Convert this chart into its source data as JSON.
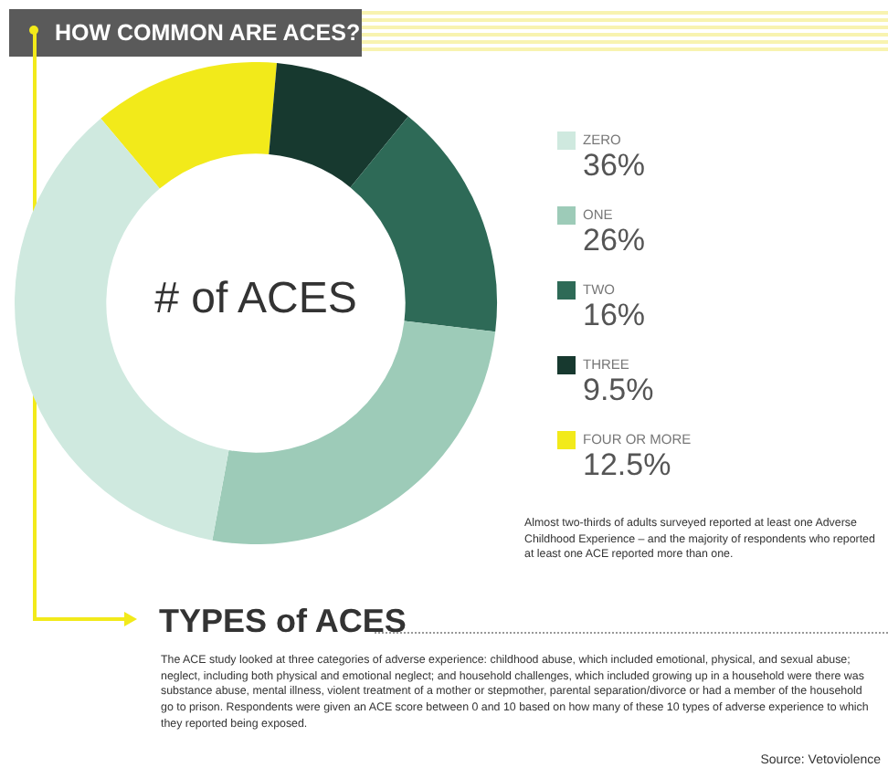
{
  "chart_data": {
    "type": "donut",
    "title": "HOW COMMON ARE ACES?",
    "categories": [
      "FOUR OR MORE",
      "THREE",
      "TWO",
      "ONE",
      "ZERO"
    ],
    "values": [
      12.5,
      9.5,
      16,
      26,
      36
    ],
    "value_labels": [
      "12.5%",
      "9.5%",
      "16%",
      "26%",
      "36%"
    ],
    "colors": [
      "#f2ea1a",
      "#17392f",
      "#2e6a57",
      "#9dcbb8",
      "#cfe9df"
    ],
    "legend": "right",
    "annotations": [
      "# of ACES",
      "Almost two-thirds of adults surveyed reported at least one Adverse Childhood Experience – and the majority of respondents who reported at least one ACE reported more than one.",
      "TYPES of ACES",
      "The ACE study looked at three categories of adverse experience: childhood abuse, which included emotional, physical, and sexual abuse; neglect, including both physical and emotional neglect; and household challenges, which included growing up in a household were there was substance abuse, mental illness, violent treatment of a mother or stepmother, parental separation/divorce or had a member of the household go to prison. Respondents were given an ACE score between 0 and 10 based on how many of these 10 types of adverse experience to which they reported being exposed.",
      "Source: Vetoviolence"
    ]
  }
}
